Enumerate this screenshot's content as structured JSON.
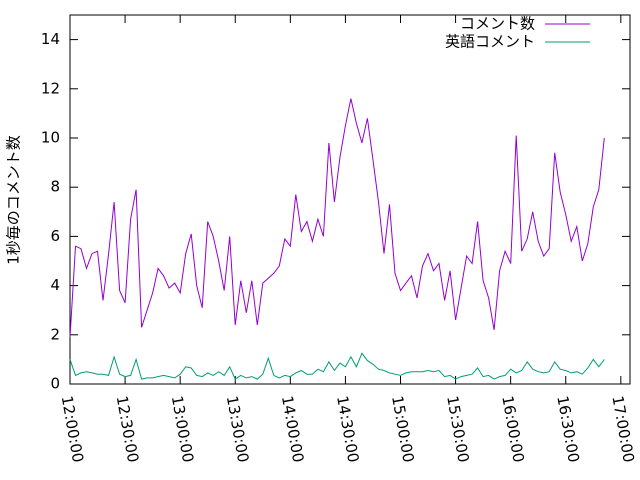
{
  "chart_data": {
    "type": "line",
    "y_label": "1秒毎のコメント数",
    "x": [
      "12:00:00",
      "12:03:00",
      "12:06:00",
      "12:09:00",
      "12:12:00",
      "12:15:00",
      "12:18:00",
      "12:21:00",
      "12:24:00",
      "12:27:00",
      "12:30:00",
      "12:33:00",
      "12:36:00",
      "12:39:00",
      "12:42:00",
      "12:45:00",
      "12:48:00",
      "12:51:00",
      "12:54:00",
      "12:57:00",
      "13:00:00",
      "13:03:00",
      "13:06:00",
      "13:09:00",
      "13:12:00",
      "13:15:00",
      "13:18:00",
      "13:21:00",
      "13:24:00",
      "13:27:00",
      "13:30:00",
      "13:33:00",
      "13:36:00",
      "13:39:00",
      "13:42:00",
      "13:45:00",
      "13:48:00",
      "13:51:00",
      "13:54:00",
      "13:57:00",
      "14:00:00",
      "14:03:00",
      "14:06:00",
      "14:09:00",
      "14:12:00",
      "14:15:00",
      "14:18:00",
      "14:21:00",
      "14:24:00",
      "14:27:00",
      "14:30:00",
      "14:33:00",
      "14:36:00",
      "14:39:00",
      "14:42:00",
      "14:45:00",
      "14:48:00",
      "14:51:00",
      "14:54:00",
      "14:57:00",
      "15:00:00",
      "15:03:00",
      "15:06:00",
      "15:09:00",
      "15:12:00",
      "15:15:00",
      "15:18:00",
      "15:21:00",
      "15:24:00",
      "15:27:00",
      "15:30:00",
      "15:33:00",
      "15:36:00",
      "15:39:00",
      "15:42:00",
      "15:45:00",
      "15:48:00",
      "15:51:00",
      "15:54:00",
      "15:57:00",
      "16:00:00",
      "16:03:00",
      "16:06:00",
      "16:09:00",
      "16:12:00",
      "16:15:00",
      "16:18:00",
      "16:21:00",
      "16:24:00",
      "16:27:00",
      "16:30:00",
      "16:33:00",
      "16:36:00",
      "16:39:00",
      "16:42:00",
      "16:45:00",
      "16:48:00",
      "16:51:00"
    ],
    "series": [
      {
        "name": "コメント数",
        "color": "#9400d3",
        "values": [
          1.9,
          5.6,
          5.5,
          4.7,
          5.3,
          5.4,
          3.4,
          5.3,
          7.4,
          3.8,
          3.3,
          6.7,
          7.9,
          2.3,
          3.0,
          3.7,
          4.7,
          4.4,
          3.9,
          4.1,
          3.7,
          5.3,
          6.1,
          4.0,
          3.1,
          6.6,
          6.0,
          5.0,
          3.8,
          6.0,
          2.4,
          4.2,
          2.9,
          4.2,
          2.4,
          4.1,
          4.3,
          4.5,
          4.8,
          5.9,
          5.6,
          7.7,
          6.2,
          6.6,
          5.8,
          6.7,
          6.0,
          9.8,
          7.4,
          9.2,
          10.5,
          11.6,
          10.6,
          9.8,
          10.8,
          9.1,
          7.4,
          5.3,
          7.3,
          4.5,
          3.8,
          4.1,
          4.4,
          3.5,
          4.8,
          5.3,
          4.6,
          4.9,
          3.4,
          4.6,
          2.6,
          3.9,
          5.2,
          4.9,
          6.6,
          4.2,
          3.5,
          2.2,
          4.6,
          5.4,
          4.9,
          10.1,
          5.4,
          5.9,
          7.0,
          5.8,
          5.2,
          5.5,
          9.4,
          7.8,
          6.9,
          5.8,
          6.4,
          5.0,
          5.7,
          7.2,
          7.9,
          10.0
        ]
      },
      {
        "name": "英語コメント",
        "color": "#009e73",
        "values": [
          1.0,
          0.35,
          0.45,
          0.5,
          0.45,
          0.4,
          0.4,
          0.35,
          1.1,
          0.4,
          0.3,
          0.35,
          1.0,
          0.2,
          0.25,
          0.25,
          0.3,
          0.35,
          0.3,
          0.25,
          0.4,
          0.7,
          0.65,
          0.35,
          0.3,
          0.45,
          0.35,
          0.5,
          0.35,
          0.7,
          0.2,
          0.35,
          0.25,
          0.3,
          0.2,
          0.4,
          1.05,
          0.35,
          0.25,
          0.35,
          0.3,
          0.45,
          0.55,
          0.4,
          0.4,
          0.6,
          0.5,
          0.9,
          0.55,
          0.85,
          0.7,
          1.1,
          0.7,
          1.25,
          0.95,
          0.8,
          0.6,
          0.55,
          0.45,
          0.4,
          0.35,
          0.45,
          0.5,
          0.5,
          0.5,
          0.55,
          0.5,
          0.55,
          0.3,
          0.35,
          0.2,
          0.3,
          0.35,
          0.4,
          0.65,
          0.3,
          0.35,
          0.2,
          0.3,
          0.35,
          0.6,
          0.45,
          0.55,
          0.9,
          0.6,
          0.5,
          0.45,
          0.5,
          0.9,
          0.6,
          0.55,
          0.45,
          0.5,
          0.4,
          0.65,
          1.0,
          0.7,
          1.0
        ]
      }
    ],
    "xlim": [
      "12:00:00",
      "17:05:00"
    ],
    "xticks": [
      "12:00:00",
      "12:30:00",
      "13:00:00",
      "13:30:00",
      "14:00:00",
      "14:30:00",
      "15:00:00",
      "15:30:00",
      "16:00:00",
      "16:30:00",
      "17:00:00"
    ],
    "ylim": [
      0,
      15
    ],
    "yticks": [
      0,
      2,
      4,
      6,
      8,
      10,
      12,
      14
    ],
    "legend": "top-right"
  }
}
